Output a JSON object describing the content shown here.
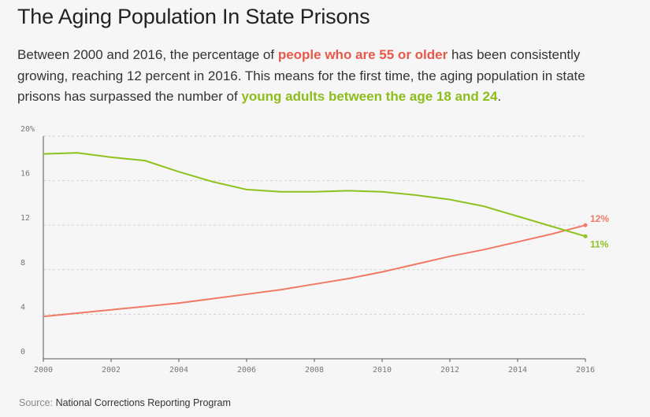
{
  "title": "The Aging Population In State Prisons",
  "description": {
    "part1": "Between 2000 and 2016, the percentage of ",
    "highlight1": "people who are 55 or older",
    "part2": " has been consistently growing, reaching 12 percent in 2016. This means for the first time, the aging population in state prisons has surpassed the number of ",
    "highlight2": "young adults between the age 18 and 24",
    "part3": "."
  },
  "source": {
    "label": "Source: ",
    "text": "National Corrections Reporting Program"
  },
  "colors": {
    "orange": "#f07a66",
    "green": "#8fc21f",
    "grid": "#cfcfcf",
    "axis": "#555555"
  },
  "chart_data": {
    "type": "line",
    "title": "",
    "xlabel": "",
    "ylabel": "",
    "xlim": [
      2000,
      2016
    ],
    "ylim": [
      0,
      20
    ],
    "grid": true,
    "x_ticks": [
      "2000",
      "2002",
      "2004",
      "2006",
      "2008",
      "2010",
      "2012",
      "2014",
      "2016"
    ],
    "y_ticks": [
      "0",
      "4",
      "8",
      "12",
      "16",
      "20%"
    ],
    "x": [
      2000,
      2001,
      2002,
      2003,
      2004,
      2005,
      2006,
      2007,
      2008,
      2009,
      2010,
      2011,
      2012,
      2013,
      2014,
      2015,
      2016
    ],
    "series": [
      {
        "key": "older",
        "color": "#f07a66",
        "values": [
          3.8,
          4.1,
          4.4,
          4.7,
          5.0,
          5.4,
          5.8,
          6.2,
          6.7,
          7.2,
          7.8,
          8.5,
          9.2,
          9.8,
          10.5,
          11.2,
          12.0
        ],
        "end_label": "12%"
      },
      {
        "key": "young",
        "color": "#8fc21f",
        "values": [
          18.4,
          18.5,
          18.1,
          17.8,
          16.8,
          15.9,
          15.2,
          15.0,
          15.0,
          15.1,
          15.0,
          14.7,
          14.3,
          13.7,
          12.8,
          11.9,
          11.0
        ],
        "end_label": "11%"
      }
    ]
  }
}
